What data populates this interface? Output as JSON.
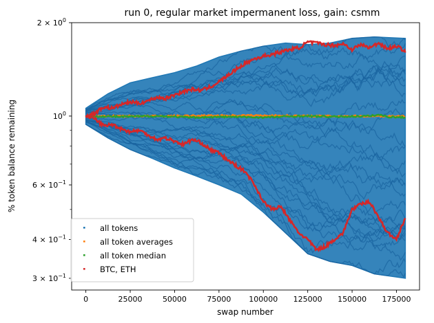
{
  "chart_data": {
    "type": "scatter",
    "title": "run 0, regular market impermanent loss, gain: csmm",
    "xlabel": "swap number",
    "ylabel": "% token balance remaining",
    "yscale": "log",
    "xlim": [
      -8000,
      188000
    ],
    "ylim": [
      0.275,
      2.0
    ],
    "x_ticks": [
      {
        "value": 0,
        "label": "0"
      },
      {
        "value": 25000,
        "label": "25000"
      },
      {
        "value": 50000,
        "label": "50000"
      },
      {
        "value": 75000,
        "label": "75000"
      },
      {
        "value": 100000,
        "label": "100000"
      },
      {
        "value": 125000,
        "label": "125000"
      },
      {
        "value": 150000,
        "label": "150000"
      },
      {
        "value": 175000,
        "label": "175000"
      }
    ],
    "y_ticks": [
      {
        "value": 2.0,
        "base": "2 × 10",
        "exp": "0"
      },
      {
        "value": 1.0,
        "base": "10",
        "exp": "0"
      },
      {
        "value": 0.6,
        "base": "6 × 10",
        "exp": "−1"
      },
      {
        "value": 0.4,
        "base": "4 × 10",
        "exp": "−1"
      },
      {
        "value": 0.3,
        "base": "3 × 10",
        "exp": "−1"
      }
    ],
    "y_minor_ticks": [
      0.9,
      0.8,
      0.7,
      0.5
    ],
    "grid": false,
    "legend": "lower-left",
    "colors": {
      "all_tokens": "#1f77b4",
      "all_token_averages": "#ff7f0e",
      "all_token_median": "#2ca02c",
      "btc_eth": "#d62728"
    },
    "series": [
      {
        "name": "all tokens",
        "color": "#1f77b4",
        "note_envelope": true,
        "x": [
          0,
          12500,
          25000,
          37500,
          50000,
          62500,
          75000,
          87500,
          100000,
          112500,
          125000,
          137500,
          150000,
          162500,
          180000
        ],
        "upper": [
          1.06,
          1.18,
          1.28,
          1.33,
          1.38,
          1.45,
          1.55,
          1.62,
          1.68,
          1.72,
          1.7,
          1.72,
          1.78,
          1.8,
          1.78
        ],
        "lower": [
          0.94,
          0.85,
          0.78,
          0.73,
          0.68,
          0.64,
          0.6,
          0.56,
          0.49,
          0.42,
          0.36,
          0.34,
          0.33,
          0.31,
          0.3
        ]
      },
      {
        "name": "all token averages",
        "color": "#ff7f0e",
        "x": [
          0,
          45000,
          90000,
          135000,
          180000
        ],
        "y": [
          1.0,
          1.0,
          1.005,
          1.0,
          1.0
        ]
      },
      {
        "name": "all token median",
        "color": "#2ca02c",
        "x": [
          0,
          20000,
          40000,
          60000,
          80000,
          100000,
          120000,
          140000,
          160000,
          165000,
          170000,
          180000
        ],
        "y": [
          1.0,
          0.995,
          1.0,
          0.99,
          0.995,
          0.99,
          1.0,
          0.995,
          1.0,
          1.01,
          0.995,
          0.99
        ]
      },
      {
        "name": "BTC, ETH",
        "color": "#d62728",
        "lines": [
          {
            "x": [
              0,
              5000,
              10000,
              15000,
              20000,
              25000,
              30000,
              35000,
              40000,
              45000,
              50000,
              55000,
              60000,
              65000,
              70000,
              75000,
              80000,
              85000,
              90000,
              95000,
              100000,
              105000,
              110000,
              115000,
              120000,
              125000,
              130000,
              135000,
              140000,
              145000,
              150000,
              155000,
              160000,
              165000,
              170000,
              175000,
              180000
            ],
            "y": [
              1.0,
              1.02,
              1.07,
              1.06,
              1.09,
              1.11,
              1.1,
              1.12,
              1.15,
              1.14,
              1.17,
              1.2,
              1.22,
              1.21,
              1.24,
              1.29,
              1.35,
              1.42,
              1.48,
              1.53,
              1.56,
              1.58,
              1.61,
              1.64,
              1.66,
              1.73,
              1.72,
              1.7,
              1.69,
              1.71,
              1.64,
              1.7,
              1.66,
              1.72,
              1.65,
              1.68,
              1.62
            ]
          },
          {
            "x": [
              0,
              5000,
              10000,
              15000,
              20000,
              25000,
              30000,
              35000,
              40000,
              45000,
              50000,
              55000,
              60000,
              65000,
              70000,
              75000,
              80000,
              85000,
              90000,
              95000,
              100000,
              105000,
              110000,
              115000,
              120000,
              125000,
              130000,
              135000,
              140000,
              145000,
              150000,
              155000,
              160000,
              165000,
              170000,
              175000,
              180000
            ],
            "y": [
              1.0,
              0.98,
              0.93,
              0.94,
              0.91,
              0.89,
              0.9,
              0.87,
              0.84,
              0.85,
              0.83,
              0.81,
              0.84,
              0.82,
              0.78,
              0.76,
              0.72,
              0.69,
              0.66,
              0.6,
              0.53,
              0.5,
              0.51,
              0.46,
              0.42,
              0.4,
              0.37,
              0.38,
              0.4,
              0.42,
              0.5,
              0.52,
              0.53,
              0.47,
              0.42,
              0.4,
              0.47
            ]
          }
        ]
      }
    ]
  }
}
